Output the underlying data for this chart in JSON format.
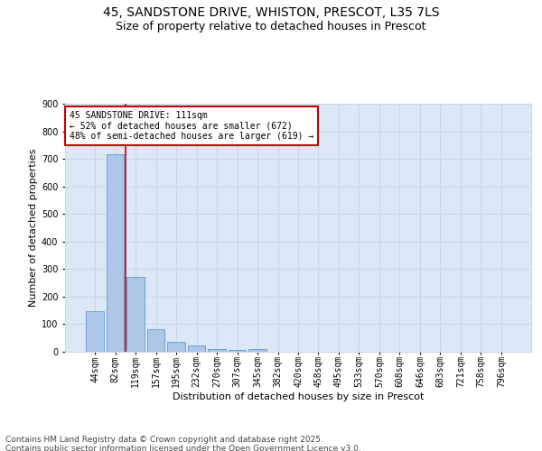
{
  "title_line1": "45, SANDSTONE DRIVE, WHISTON, PRESCOT, L35 7LS",
  "title_line2": "Size of property relative to detached houses in Prescot",
  "xlabel": "Distribution of detached houses by size in Prescot",
  "ylabel": "Number of detached properties",
  "bar_labels": [
    "44sqm",
    "82sqm",
    "119sqm",
    "157sqm",
    "195sqm",
    "232sqm",
    "270sqm",
    "307sqm",
    "345sqm",
    "382sqm",
    "420sqm",
    "458sqm",
    "495sqm",
    "533sqm",
    "570sqm",
    "608sqm",
    "646sqm",
    "683sqm",
    "721sqm",
    "758sqm",
    "796sqm"
  ],
  "bar_values": [
    148,
    717,
    272,
    83,
    37,
    22,
    11,
    8,
    10,
    0,
    0,
    0,
    0,
    0,
    0,
    0,
    0,
    0,
    0,
    0,
    0
  ],
  "bar_color": "#aec6e8",
  "bar_edge_color": "#5b9bd5",
  "vline_x": 1.5,
  "vline_color": "#cc0000",
  "annotation_text": "45 SANDSTONE DRIVE: 111sqm\n← 52% of detached houses are smaller (672)\n48% of semi-detached houses are larger (619) →",
  "ylim": [
    0,
    900
  ],
  "yticks": [
    0,
    100,
    200,
    300,
    400,
    500,
    600,
    700,
    800,
    900
  ],
  "grid_color": "#c8d8e8",
  "background_color": "#dce8f5",
  "footer_text": "Contains HM Land Registry data © Crown copyright and database right 2025.\nContains public sector information licensed under the Open Government Licence v3.0.",
  "title_fontsize": 10,
  "subtitle_fontsize": 9,
  "axis_label_fontsize": 8,
  "tick_fontsize": 7,
  "annotation_fontsize": 7,
  "footer_fontsize": 6.5
}
